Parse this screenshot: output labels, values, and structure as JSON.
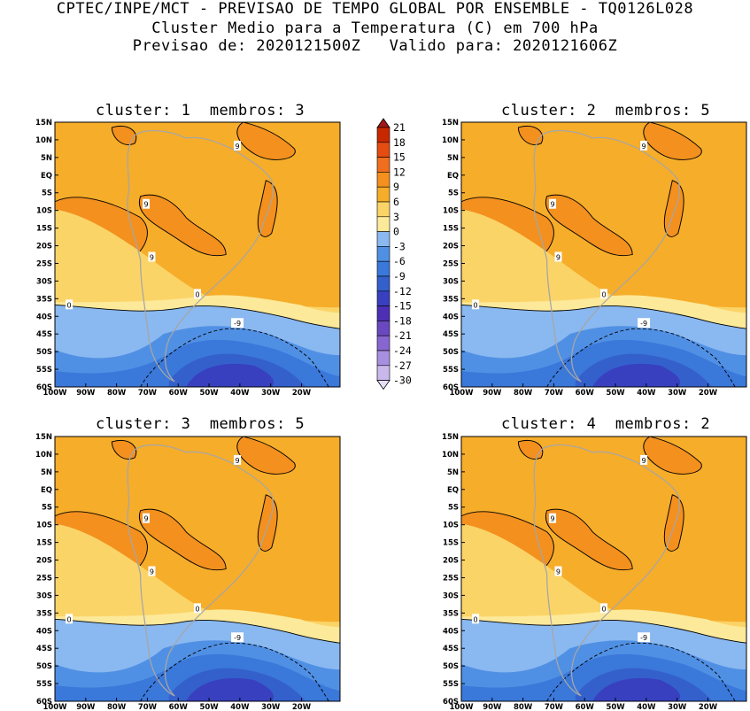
{
  "header": {
    "line1": "CPTEC/INPE/MCT - PREVISAO DE TEMPO GLOBAL POR ENSEMBLE - TQ0126L028",
    "line2": "Cluster Medio para a Temperatura (C) em 700 hPa",
    "line3": "Previsao de: 2020121500Z   Valido para: 2020121606Z"
  },
  "panels": [
    {
      "title": "cluster: 1  membros: 3"
    },
    {
      "title": "cluster: 2  membros: 5"
    },
    {
      "title": "cluster: 3  membros: 5"
    },
    {
      "title": "cluster: 4  membros: 2"
    }
  ],
  "axes": {
    "lat_labels": [
      "15N",
      "10N",
      "5N",
      "EQ",
      "5S",
      "10S",
      "15S",
      "20S",
      "25S",
      "30S",
      "35S",
      "40S",
      "45S",
      "50S",
      "55S",
      "60S"
    ],
    "lon_labels": [
      "100W",
      "90W",
      "80W",
      "70W",
      "60W",
      "50W",
      "40W",
      "30W",
      "20W"
    ]
  },
  "colorbar": {
    "levels": [
      "21",
      "18",
      "15",
      "12",
      "9",
      "6",
      "3",
      "0",
      "-3",
      "-6",
      "-9",
      "-12",
      "-15",
      "-18",
      "-21",
      "-24",
      "-27",
      "-30"
    ],
    "colors": [
      "#a01818",
      "#c82800",
      "#e44c10",
      "#f06e1e",
      "#f3901e",
      "#f6ad2a",
      "#fbd468",
      "#fde99a",
      "#8ab8f0",
      "#5090e4",
      "#3a78da",
      "#3460cc",
      "#3840c0",
      "#4b30b4",
      "#6a48c0",
      "#8866d0",
      "#a890e0",
      "#c8b8ec",
      "#e6def8"
    ]
  },
  "contour_labels": {
    "warm": "9",
    "zero": "0",
    "cold": "-9"
  },
  "colors": {
    "land_outline": "#a6a6a6",
    "contour": "#000000"
  }
}
